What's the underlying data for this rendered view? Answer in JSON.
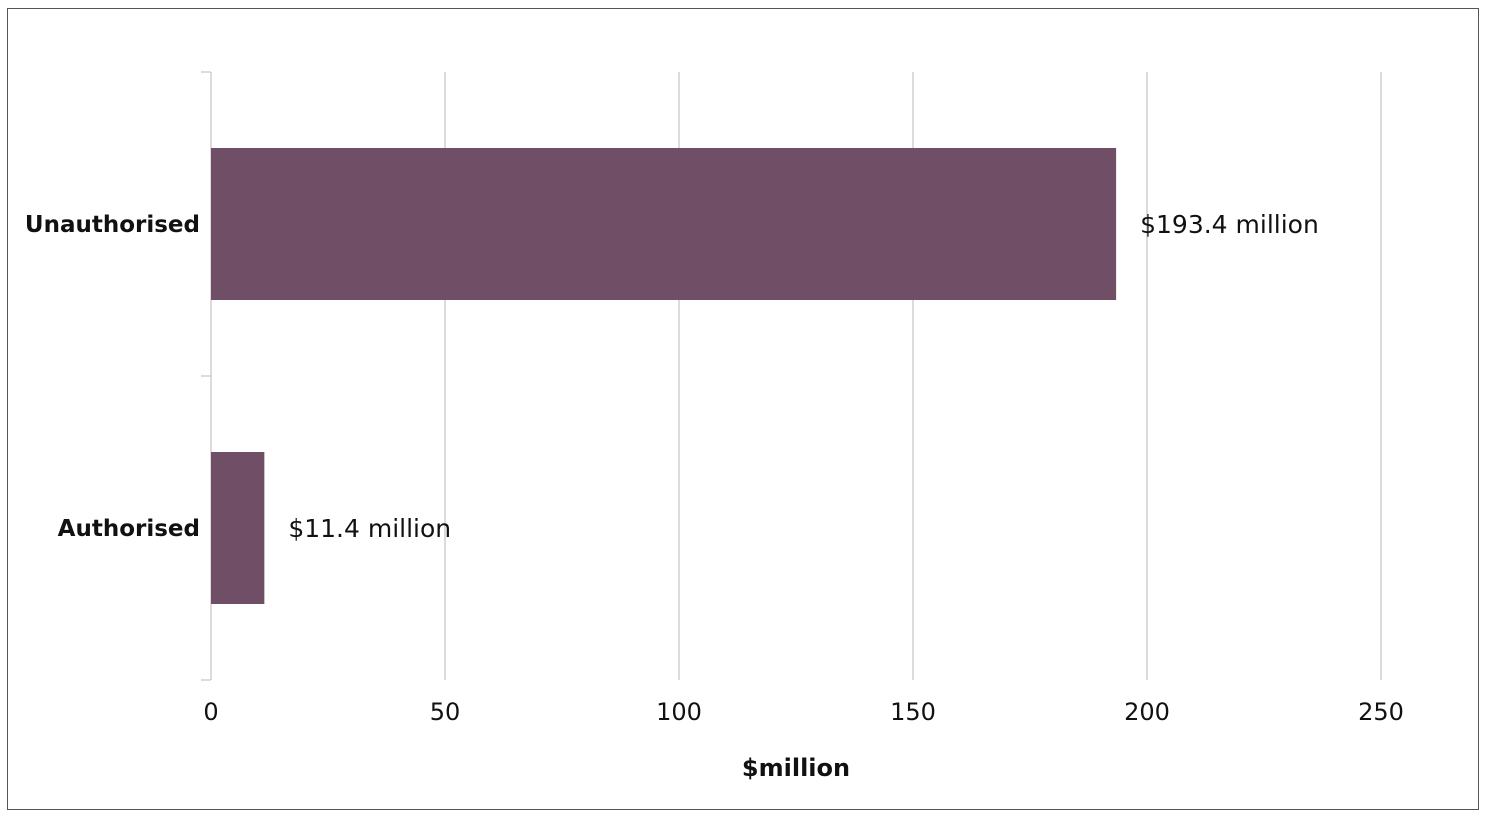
{
  "chart_data": {
    "type": "bar",
    "orientation": "horizontal",
    "categories": [
      "Unauthorised",
      "Authorised"
    ],
    "values": [
      193.4,
      11.4
    ],
    "data_labels": [
      "$193.4 million",
      "$11.4 million"
    ],
    "xlabel": "$million",
    "ylabel": "",
    "xlim": [
      0,
      250
    ],
    "x_ticks": [
      0,
      50,
      100,
      150,
      200,
      250
    ],
    "grid": "vertical",
    "legend": "none",
    "bar_color": "#704F66",
    "gridline_color": "#C8C8C8"
  }
}
